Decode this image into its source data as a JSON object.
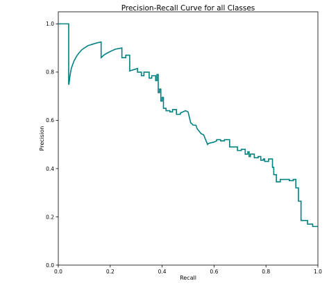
{
  "chart_data": {
    "type": "line",
    "title": "Precision-Recall Curve for all Classes",
    "xlabel": "Recall",
    "ylabel": "Precision",
    "xlim": [
      0.0,
      1.0
    ],
    "ylim": [
      0.0,
      1.05
    ],
    "x_ticks": [
      "0.0",
      "0.2",
      "0.4",
      "0.6",
      "0.8",
      "1.0"
    ],
    "y_ticks": [
      "0.0",
      "0.2",
      "0.4",
      "0.6",
      "0.8",
      "1.0"
    ],
    "x_tick_values": [
      0.0,
      0.2,
      0.4,
      0.6,
      0.8,
      1.0
    ],
    "y_tick_values": [
      0.0,
      0.2,
      0.4,
      0.6,
      0.8,
      1.0
    ],
    "grid": false,
    "legend": false,
    "series": [
      {
        "color": "#008080",
        "x": [
          0.0,
          0.04,
          0.04,
          0.041,
          0.045,
          0.05,
          0.06,
          0.07,
          0.08,
          0.09,
          0.1,
          0.115,
          0.13,
          0.145,
          0.165,
          0.165,
          0.175,
          0.19,
          0.205,
          0.22,
          0.245,
          0.245,
          0.26,
          0.26,
          0.275,
          0.275,
          0.29,
          0.305,
          0.305,
          0.31,
          0.315,
          0.32,
          0.32,
          0.33,
          0.33,
          0.35,
          0.35,
          0.36,
          0.36,
          0.375,
          0.375,
          0.38,
          0.38,
          0.385,
          0.385,
          0.39,
          0.39,
          0.395,
          0.395,
          0.4,
          0.4,
          0.405,
          0.405,
          0.415,
          0.415,
          0.43,
          0.43,
          0.44,
          0.44,
          0.455,
          0.455,
          0.47,
          0.47,
          0.48,
          0.49,
          0.49,
          0.5,
          0.5,
          0.51,
          0.51,
          0.52,
          0.52,
          0.53,
          0.53,
          0.535,
          0.535,
          0.55,
          0.55,
          0.56,
          0.56,
          0.575,
          0.58,
          0.6,
          0.61,
          0.61,
          0.625,
          0.625,
          0.64,
          0.64,
          0.66,
          0.66,
          0.69,
          0.69,
          0.705,
          0.705,
          0.72,
          0.72,
          0.73,
          0.73,
          0.735,
          0.735,
          0.74,
          0.74,
          0.755,
          0.755,
          0.77,
          0.77,
          0.78,
          0.78,
          0.79,
          0.79,
          0.795,
          0.795,
          0.81,
          0.81,
          0.825,
          0.825,
          0.83,
          0.83,
          0.84,
          0.84,
          0.855,
          0.855,
          0.88,
          0.88,
          0.89,
          0.89,
          0.905,
          0.905,
          0.915,
          0.915,
          0.925,
          0.925,
          0.935,
          0.935,
          0.945,
          0.945,
          0.96,
          0.96,
          0.98,
          0.98,
          1.0
        ],
        "y": [
          1.0,
          1.0,
          0.75,
          0.75,
          0.785,
          0.815,
          0.845,
          0.865,
          0.88,
          0.892,
          0.9,
          0.91,
          0.915,
          0.92,
          0.925,
          0.86,
          0.87,
          0.88,
          0.888,
          0.895,
          0.9,
          0.86,
          0.86,
          0.87,
          0.87,
          0.805,
          0.81,
          0.815,
          0.8,
          0.8,
          0.8,
          0.8,
          0.785,
          0.785,
          0.8,
          0.8,
          0.775,
          0.775,
          0.785,
          0.785,
          0.765,
          0.765,
          0.79,
          0.79,
          0.715,
          0.715,
          0.73,
          0.73,
          0.68,
          0.68,
          0.695,
          0.695,
          0.65,
          0.65,
          0.64,
          0.64,
          0.635,
          0.635,
          0.645,
          0.645,
          0.625,
          0.625,
          0.63,
          0.635,
          0.64,
          0.64,
          0.635,
          0.635,
          0.59,
          0.59,
          0.58,
          0.58,
          0.58,
          0.58,
          0.565,
          0.565,
          0.545,
          0.545,
          0.54,
          0.54,
          0.5,
          0.505,
          0.51,
          0.515,
          0.52,
          0.52,
          0.515,
          0.515,
          0.52,
          0.52,
          0.49,
          0.49,
          0.475,
          0.475,
          0.48,
          0.48,
          0.46,
          0.46,
          0.47,
          0.47,
          0.45,
          0.45,
          0.46,
          0.46,
          0.445,
          0.445,
          0.45,
          0.45,
          0.435,
          0.435,
          0.44,
          0.44,
          0.43,
          0.43,
          0.44,
          0.44,
          0.405,
          0.405,
          0.375,
          0.375,
          0.345,
          0.345,
          0.355,
          0.355,
          0.355,
          0.355,
          0.35,
          0.35,
          0.355,
          0.355,
          0.32,
          0.32,
          0.265,
          0.265,
          0.185,
          0.185,
          0.185,
          0.185,
          0.17,
          0.17,
          0.16,
          0.16
        ]
      }
    ]
  }
}
